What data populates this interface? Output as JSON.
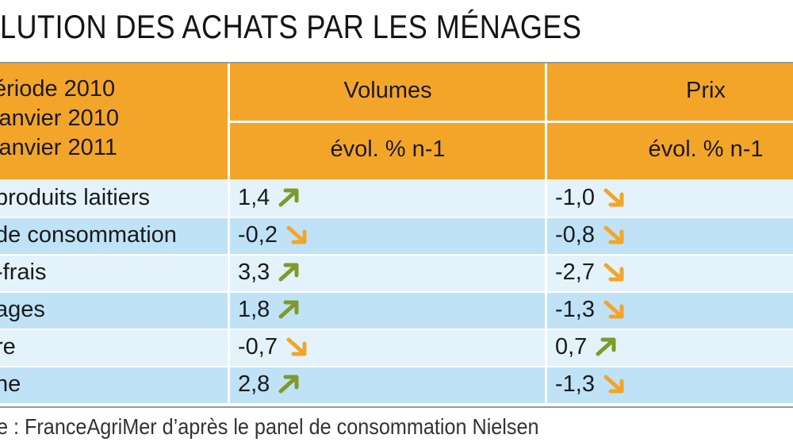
{
  "title": "LUTION DES ACHATS PAR LES MÉNAGES",
  "header": {
    "period_lines": [
      "ériode 2010",
      "janvier 2010",
      "janvier 2011"
    ],
    "volumes": "Volumes",
    "prix": "Prix",
    "volumes_unit": "évol. % n-1",
    "prix_unit": "évol. % n-1"
  },
  "chart_data": {
    "type": "table",
    "columns": [
      "Volumes évol. % n-1",
      "Prix évol. % n-1"
    ],
    "rows": [
      {
        "label": " produits laitiers",
        "volumes": "1,4",
        "volumes_trend": "up",
        "prix": "-1,0",
        "prix_trend": "down"
      },
      {
        "label": "de consommation",
        "volumes": "-0,2",
        "volumes_trend": "down",
        "prix": "-0,8",
        "prix_trend": "down"
      },
      {
        "label": "-frais",
        "volumes": "3,3",
        "volumes_trend": "up",
        "prix": "-2,7",
        "prix_trend": "down"
      },
      {
        "label": "ages",
        "volumes": "1,8",
        "volumes_trend": "up",
        "prix": "-1,3",
        "prix_trend": "down"
      },
      {
        "label": "re",
        "volumes": "-0,7",
        "volumes_trend": "down",
        "prix": "0,7",
        "prix_trend": "up"
      },
      {
        "label": "ne",
        "volumes": "2,8",
        "volumes_trend": "up",
        "prix": "-1,3",
        "prix_trend": "down"
      }
    ]
  },
  "colors": {
    "header": "#f3a52a",
    "row_light": "#e3f2fb",
    "row_dark": "#bfe2f6",
    "arrow_up": "#7f9a2c",
    "arrow_down": "#f3a52a"
  },
  "source": "e : FranceAgriMer d’après le panel de consommation Nielsen"
}
